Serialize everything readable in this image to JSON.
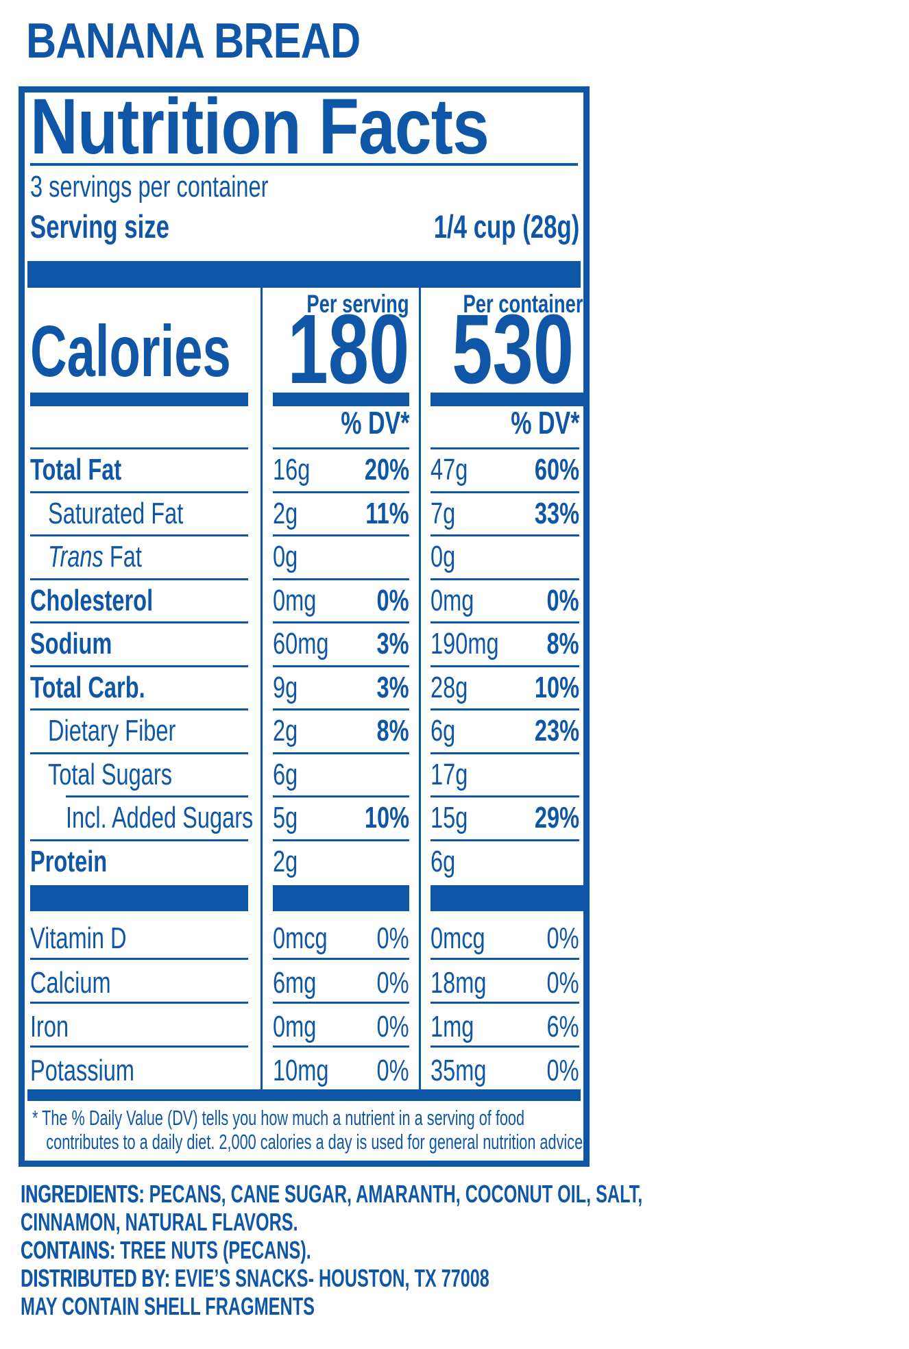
{
  "colors": {
    "brand_blue": "#0f57a6"
  },
  "title": "BANANA BREAD",
  "label": {
    "heading": "Nutrition Facts",
    "servings_per_container": "3 servings per container",
    "serving_size_label": "Serving size",
    "serving_size_value": "1/4 cup (28g)",
    "calories": {
      "label": "Calories",
      "per_serving_header": "Per serving",
      "per_container_header": "Per container",
      "per_serving": "180",
      "per_container": "530"
    },
    "dv_header_per_serving": "% DV*",
    "dv_header_per_container": "% DV*",
    "rows": [
      {
        "name": "Total Fat",
        "ps_amount": "16g",
        "ps_dv": "20%",
        "pc_amount": "47g",
        "pc_dv": "60%"
      },
      {
        "name": "Saturated Fat",
        "ps_amount": "2g",
        "ps_dv": "11%",
        "pc_amount": "7g",
        "pc_dv": "33%"
      },
      {
        "name_italic": "Trans",
        "name": " Fat",
        "ps_amount": "0g",
        "pc_amount": "0g"
      },
      {
        "name": "Cholesterol",
        "ps_amount": "0mg",
        "ps_dv": "0%",
        "pc_amount": "0mg",
        "pc_dv": "0%"
      },
      {
        "name": "Sodium",
        "ps_amount": "60mg",
        "ps_dv": "3%",
        "pc_amount": "190mg",
        "pc_dv": "8%"
      },
      {
        "name": "Total Carb.",
        "ps_amount": "9g",
        "ps_dv": "3%",
        "pc_amount": "28g",
        "pc_dv": "10%"
      },
      {
        "name": "Dietary Fiber",
        "ps_amount": "2g",
        "ps_dv": "8%",
        "pc_amount": "6g",
        "pc_dv": "23%"
      },
      {
        "name": "Total Sugars",
        "ps_amount": "6g",
        "pc_amount": "17g"
      },
      {
        "name": "Incl. Added Sugars",
        "ps_amount": "5g",
        "ps_dv": "10%",
        "pc_amount": "15g",
        "pc_dv": "29%"
      },
      {
        "name": "Protein",
        "ps_amount": "2g",
        "pc_amount": "6g"
      }
    ],
    "vitamins": [
      {
        "name": "Vitamin D",
        "ps_amount": "0mcg",
        "ps_dv": "0%",
        "pc_amount": "0mcg",
        "pc_dv": "0%"
      },
      {
        "name": "Calcium",
        "ps_amount": "6mg",
        "ps_dv": "0%",
        "pc_amount": "18mg",
        "pc_dv": "0%"
      },
      {
        "name": "Iron",
        "ps_amount": "0mg",
        "ps_dv": "0%",
        "pc_amount": "1mg",
        "pc_dv": "6%"
      },
      {
        "name": "Potassium",
        "ps_amount": "10mg",
        "ps_dv": "0%",
        "pc_amount": "35mg",
        "pc_dv": "0%"
      }
    ],
    "footnote_line1": "* The % Daily Value (DV) tells you how much a nutrient in a serving of food",
    "footnote_line2": "contributes to a daily diet. 2,000 calories a day is used for general nutrition advice."
  },
  "details": {
    "ingredients_label": "INGREDIENTS:",
    "ingredients_value": " PECANS, CANE SUGAR, AMARANTH, COCONUT OIL, SALT,",
    "ingredients_value_line2": "CINNAMON, NATURAL FLAVORS.",
    "contains_label": "CONTAINS:",
    "contains_value": " TREE NUTS (PECANS).",
    "distributed_label": "DISTRIBUTED BY:",
    "distributed_value": " EVIE’S SNACKS- HOUSTON, TX 77008",
    "may_contain": "MAY CONTAIN SHELL FRAGMENTS"
  }
}
